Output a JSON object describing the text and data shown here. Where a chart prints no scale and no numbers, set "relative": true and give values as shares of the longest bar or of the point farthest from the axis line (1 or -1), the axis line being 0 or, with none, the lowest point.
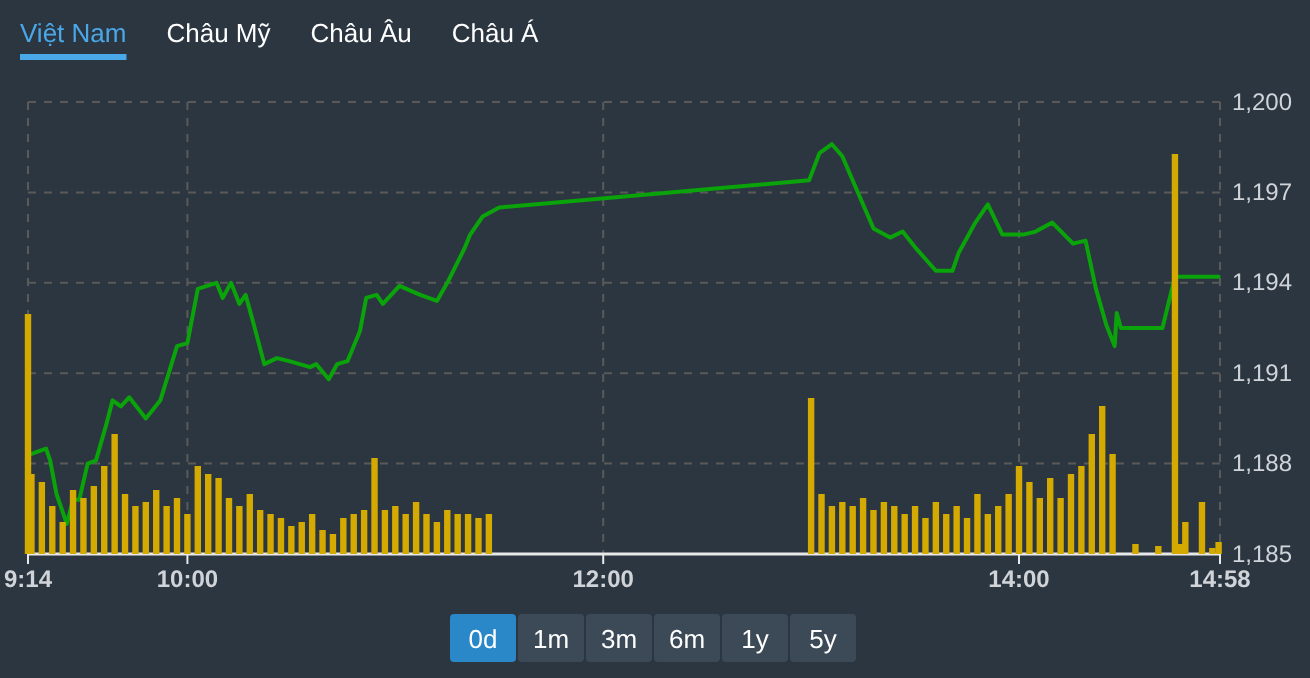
{
  "chart_data": [
    {
      "type": "line",
      "xlim": [
        9.2333,
        14.9667
      ],
      "ylim": [
        1185,
        1200
      ],
      "xticks": [
        {
          "value": 9.2333,
          "label": "9:14"
        },
        {
          "value": 10,
          "label": "10:00"
        },
        {
          "value": 12,
          "label": "12:00"
        },
        {
          "value": 14,
          "label": "14:00"
        },
        {
          "value": 14.9667,
          "label": "14:58"
        }
      ],
      "yticks": [
        {
          "value": 1185,
          "label": "1,185"
        },
        {
          "value": 1188,
          "label": "1,188"
        },
        {
          "value": 1191,
          "label": "1,191"
        },
        {
          "value": 1194,
          "label": "1,194"
        },
        {
          "value": 1197,
          "label": "1,197"
        },
        {
          "value": 1200,
          "label": "1,200"
        }
      ],
      "grid": true,
      "line_style": "solid",
      "series": [
        {
          "color": "#0aa30a",
          "x": [
            9.24,
            9.32,
            9.34,
            9.37,
            9.42,
            9.45,
            9.48,
            9.52,
            9.56,
            9.61,
            9.64,
            9.68,
            9.72,
            9.8,
            9.87,
            9.95,
            10.0,
            10.05,
            10.14,
            10.17,
            10.21,
            10.25,
            10.28,
            10.32,
            10.37,
            10.43,
            10.49,
            10.59,
            10.62,
            10.68,
            10.72,
            10.77,
            10.83,
            10.86,
            10.91,
            10.94,
            11.02,
            11.12,
            11.2,
            11.25,
            11.33,
            11.36,
            11.42,
            11.5,
            12.99,
            13.04,
            13.1,
            13.15,
            13.25,
            13.3,
            13.38,
            13.44,
            13.51,
            13.6,
            13.68,
            13.71,
            13.79,
            13.85,
            13.92,
            14.02,
            14.08,
            14.16,
            14.26,
            14.32,
            14.37,
            14.42,
            14.46,
            14.47,
            14.49,
            14.69,
            14.75,
            14.96
          ],
          "values": [
            1188.3,
            1188.5,
            1188.1,
            1187.0,
            1186.0,
            1186.8,
            1186.8,
            1188.0,
            1188.1,
            1189.3,
            1190.1,
            1189.9,
            1190.2,
            1189.5,
            1190.1,
            1191.9,
            1192.0,
            1193.8,
            1194.0,
            1193.5,
            1194.0,
            1193.3,
            1193.6,
            1192.6,
            1191.3,
            1191.5,
            1191.4,
            1191.2,
            1191.3,
            1190.8,
            1191.3,
            1191.4,
            1192.4,
            1193.5,
            1193.6,
            1193.3,
            1193.9,
            1193.6,
            1193.4,
            1194.0,
            1195.1,
            1195.6,
            1196.2,
            1196.5,
            1197.4,
            1198.3,
            1198.6,
            1198.2,
            1196.6,
            1195.8,
            1195.5,
            1195.7,
            1195.1,
            1194.4,
            1194.4,
            1195.0,
            1196.0,
            1196.6,
            1195.6,
            1195.6,
            1195.7,
            1196.0,
            1195.3,
            1195.4,
            1193.8,
            1192.6,
            1191.9,
            1193.0,
            1192.5,
            1192.5,
            1194.2,
            1194.2
          ]
        }
      ]
    },
    {
      "type": "bar",
      "relative": true,
      "xlim": [
        9.2333,
        14.9667
      ],
      "color": "#d4aa00",
      "x": [
        9.2333,
        9.25,
        9.3,
        9.35,
        9.4,
        9.45,
        9.5,
        9.55,
        9.6,
        9.65,
        9.7,
        9.75,
        9.8,
        9.85,
        9.9,
        9.95,
        10.0,
        10.05,
        10.1,
        10.15,
        10.2,
        10.25,
        10.3,
        10.35,
        10.4,
        10.45,
        10.5,
        10.55,
        10.6,
        10.65,
        10.7,
        10.75,
        10.8,
        10.85,
        10.9,
        10.95,
        11.0,
        11.05,
        11.1,
        11.15,
        11.2,
        11.25,
        11.3,
        11.35,
        11.4,
        11.45,
        13.0,
        13.05,
        13.1,
        13.15,
        13.2,
        13.25,
        13.3,
        13.35,
        13.4,
        13.45,
        13.5,
        13.55,
        13.6,
        13.65,
        13.7,
        13.75,
        13.8,
        13.85,
        13.9,
        13.95,
        14.0,
        14.05,
        14.1,
        14.15,
        14.2,
        14.25,
        14.3,
        14.35,
        14.4,
        14.45,
        14.56,
        14.67,
        14.75,
        14.78,
        14.8,
        14.88,
        14.93,
        14.96
      ],
      "values": [
        0.6,
        0.2,
        0.18,
        0.12,
        0.08,
        0.16,
        0.14,
        0.17,
        0.22,
        0.3,
        0.15,
        0.12,
        0.13,
        0.16,
        0.12,
        0.14,
        0.1,
        0.22,
        0.2,
        0.19,
        0.14,
        0.12,
        0.15,
        0.11,
        0.1,
        0.09,
        0.07,
        0.08,
        0.1,
        0.06,
        0.05,
        0.09,
        0.1,
        0.11,
        0.24,
        0.11,
        0.12,
        0.1,
        0.13,
        0.1,
        0.08,
        0.11,
        0.1,
        0.1,
        0.09,
        0.1,
        0.39,
        0.15,
        0.12,
        0.13,
        0.12,
        0.14,
        0.11,
        0.13,
        0.12,
        0.1,
        0.12,
        0.09,
        0.13,
        0.1,
        0.12,
        0.09,
        0.15,
        0.1,
        0.12,
        0.15,
        0.22,
        0.18,
        0.14,
        0.19,
        0.14,
        0.2,
        0.22,
        0.3,
        0.37,
        0.25,
        0.025,
        0.02,
        1,
        0.025,
        0.08,
        0.13,
        0.015,
        0.03
      ]
    },
    {
      "type": "other",
      "annotations": [
        "Việt Nam",
        "Châu Mỹ",
        "Châu Âu",
        "Châu Á"
      ]
    },
    {
      "type": "other",
      "annotations": [
        "0d",
        "1m",
        "3m",
        "6m",
        "1y",
        "5y"
      ]
    }
  ]
}
